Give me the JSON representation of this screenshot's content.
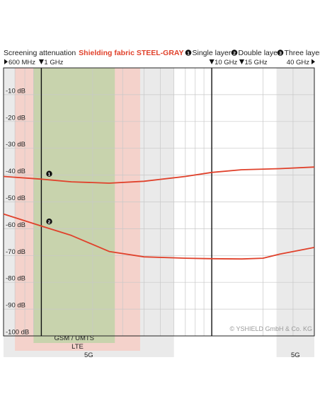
{
  "header": {
    "title_prefix": "Screening attenuation",
    "title_product": "Shielding fabric STEEL-GRAY",
    "legend": [
      {
        "marker": "1",
        "label": "Single layer"
      },
      {
        "marker": "2",
        "label": "Double layer"
      },
      {
        "marker": "3",
        "label": "Three layer"
      }
    ]
  },
  "copyright": "© YSHIELD GmbH & Co. KG",
  "colors": {
    "accent": "#e0412b",
    "band_gray": "#d9d9d9",
    "band_pink": "#f7c9c0",
    "band_green": "#bfd3a8"
  },
  "chart_data": {
    "type": "line",
    "xscale": "log",
    "xlim_ghz": [
      0.6,
      40
    ],
    "ylim": [
      -100,
      0
    ],
    "ylabel_unit": "dB",
    "y_ticks": [
      {
        "value": -10,
        "label": "-10 dB"
      },
      {
        "value": -20,
        "label": "-20 dB"
      },
      {
        "value": -30,
        "label": "-30 dB"
      },
      {
        "value": -40,
        "label": "-40 dB"
      },
      {
        "value": -50,
        "label": "-50 dB"
      },
      {
        "value": -60,
        "label": "-60 dB"
      },
      {
        "value": -70,
        "label": "-70 dB"
      },
      {
        "value": -80,
        "label": "-80 dB"
      },
      {
        "value": -90,
        "label": "-90 dB"
      },
      {
        "value": -100,
        "label": "-100 dB"
      }
    ],
    "x_markers": [
      {
        "value": 0.6,
        "label": "600 MHz",
        "arrow": "right"
      },
      {
        "value": 1,
        "label": "1 GHz",
        "arrow": "down"
      },
      {
        "value": 10,
        "label": "10 GHz",
        "arrow": "down"
      },
      {
        "value": 15,
        "label": "15 GHz",
        "arrow": "down"
      },
      {
        "value": 40,
        "label": "40 GHz",
        "arrow": "right"
      }
    ],
    "vertical_lines_ghz": [
      1,
      10
    ],
    "bands": [
      {
        "name": "5G",
        "from": 0.6,
        "to": 6,
        "color": "gray",
        "row": 3
      },
      {
        "name": "5G",
        "from": 24,
        "to": 40,
        "color": "gray",
        "row": 3
      },
      {
        "name": "LTE",
        "from": 0.7,
        "to": 3.8,
        "color": "pink",
        "row": 2
      },
      {
        "name": "GSM / UMTS",
        "from": 0.9,
        "to": 2.7,
        "color": "green",
        "row": 1
      }
    ],
    "series": [
      {
        "marker": "1",
        "marker_x": 1.05,
        "x": [
          0.6,
          1,
          1.5,
          2.5,
          4,
          7,
          10,
          15,
          25,
          40
        ],
        "y": [
          -40.5,
          -41.5,
          -42.5,
          -43,
          -42.3,
          -40.5,
          -39,
          -38,
          -37.6,
          -37
        ]
      },
      {
        "marker": "2",
        "marker_x": 1.05,
        "x": [
          0.6,
          1,
          1.5,
          2.5,
          4,
          7,
          10,
          15,
          20,
          25,
          40
        ],
        "y": [
          -54.5,
          -59,
          -62.5,
          -68.5,
          -70.5,
          -71,
          -71.2,
          -71.3,
          -71,
          -69.5,
          -67
        ]
      }
    ]
  }
}
